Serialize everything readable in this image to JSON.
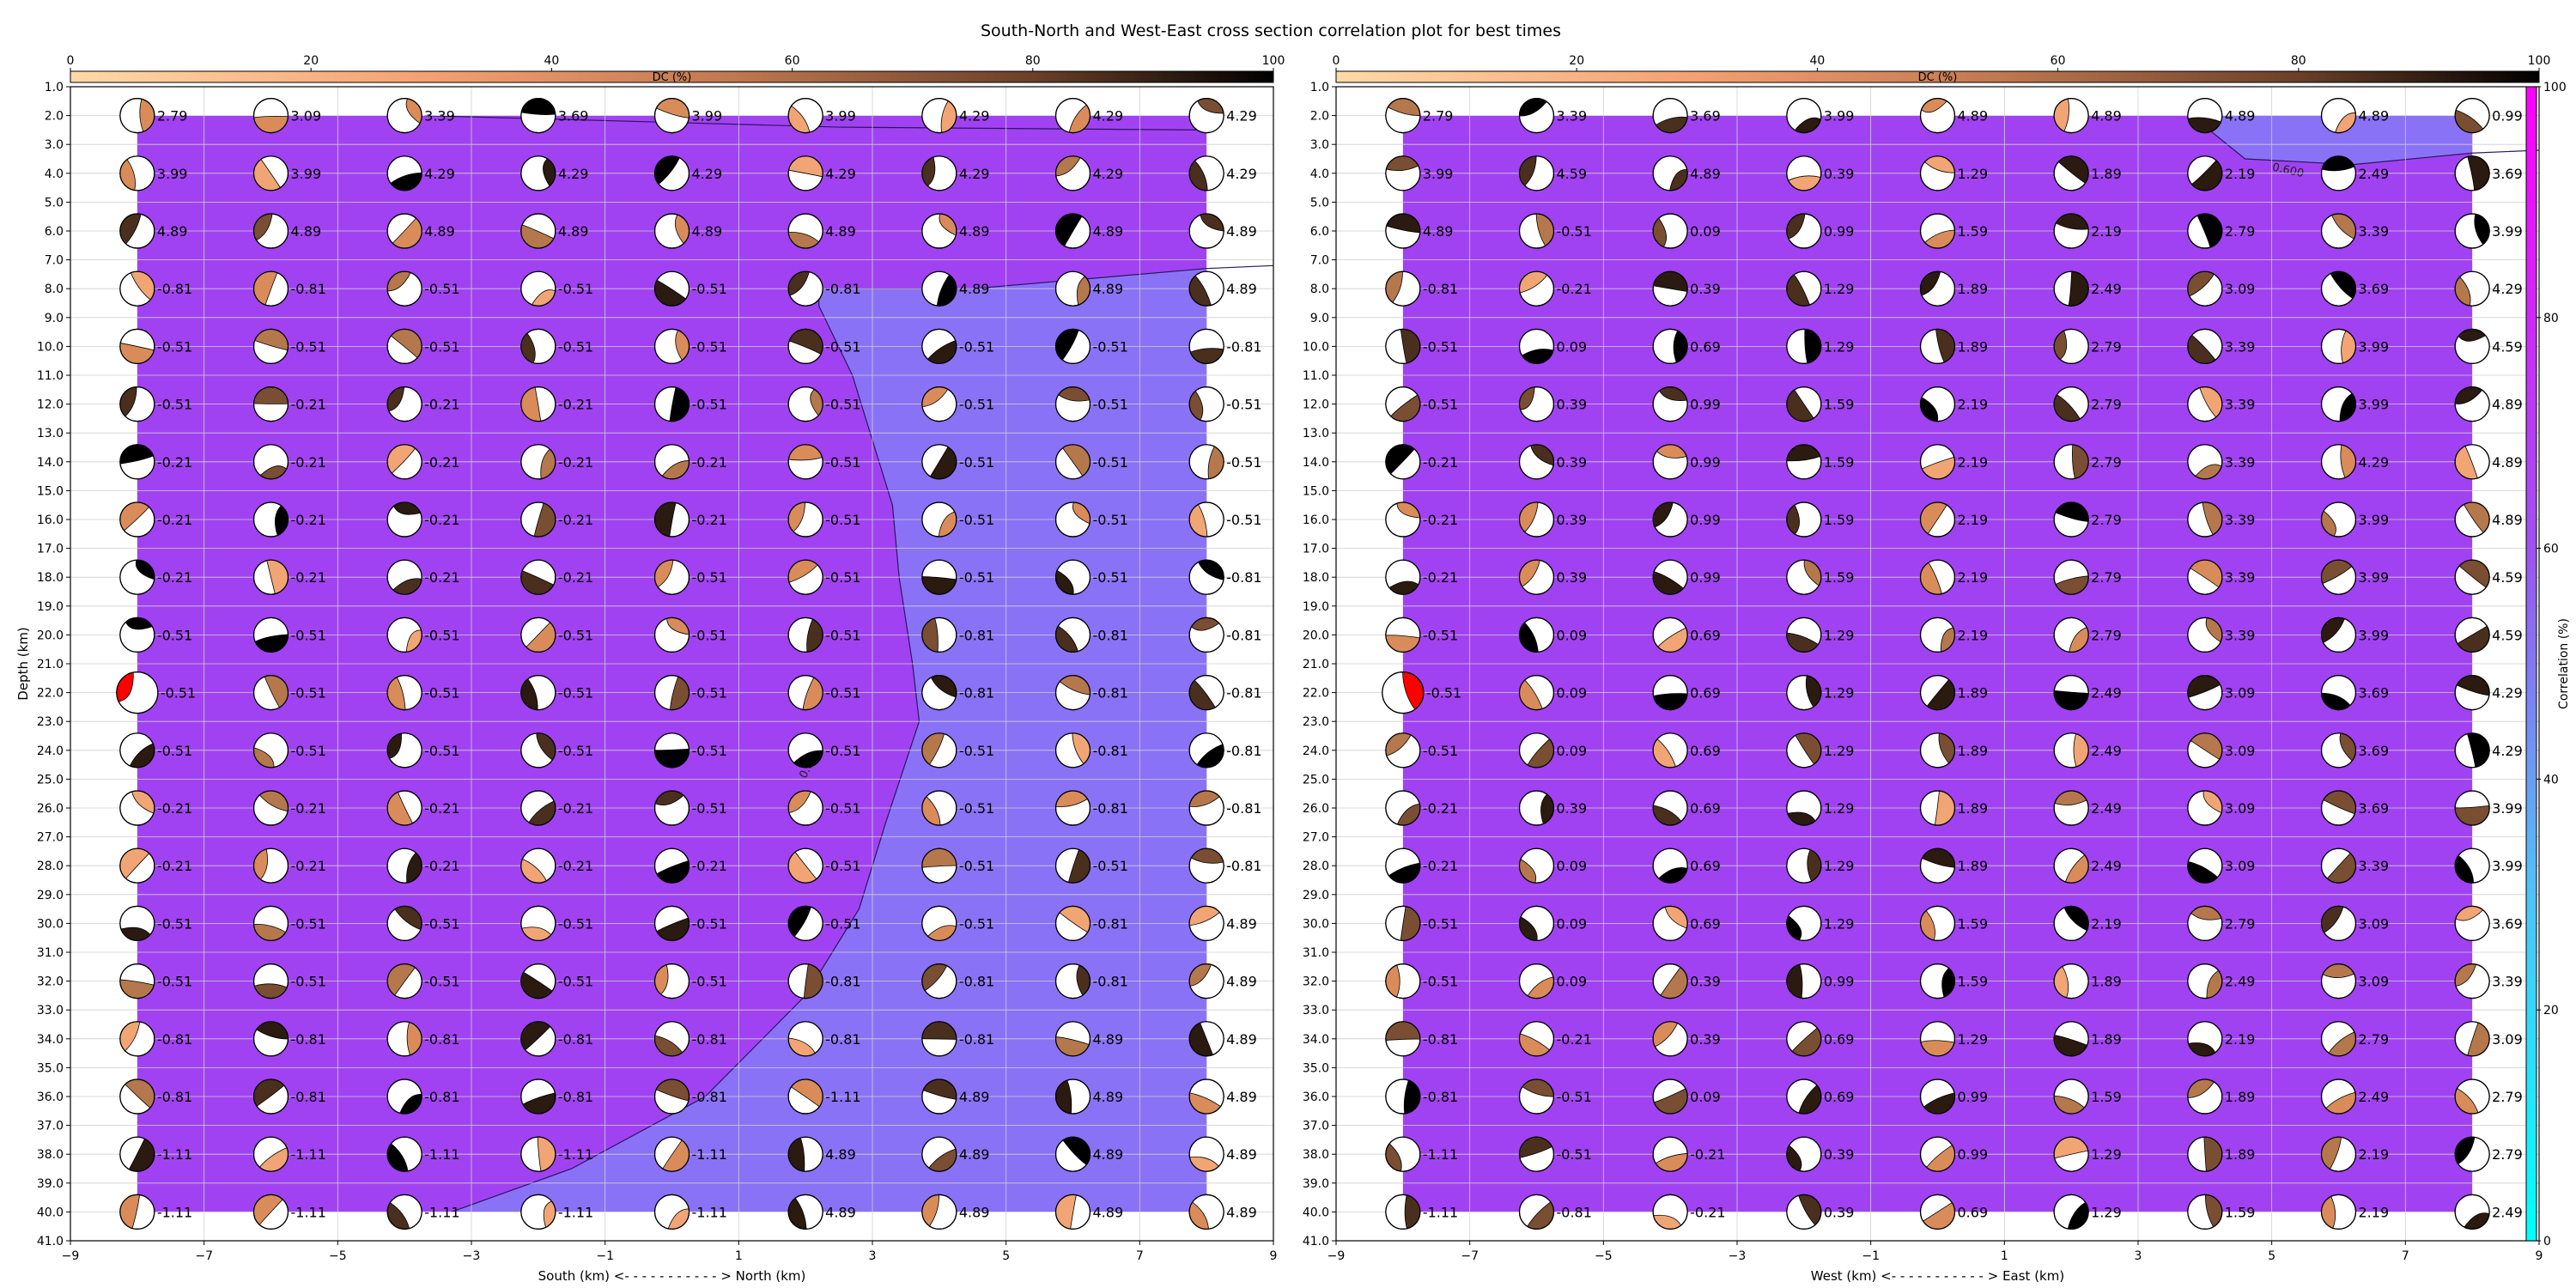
{
  "title": "South-North and West-East cross section correlation plot for best times",
  "chart_data": [
    {
      "type": "scatter",
      "panel": "south-north",
      "xlabel": "South (km) <- - - - - - - - - - - > North (km)",
      "ylabel": "Depth (km)",
      "xlim": [
        -9,
        9
      ],
      "ylim": [
        41,
        1
      ],
      "xticks": [
        "−9",
        "−7",
        "−5",
        "−3",
        "−1",
        "1",
        "3",
        "5",
        "7",
        "9"
      ],
      "x_positions": [
        -8,
        -6,
        -4,
        -2,
        0,
        2,
        4,
        6,
        8
      ],
      "depths": [
        2,
        4,
        6,
        8,
        10,
        12,
        14,
        16,
        18,
        20,
        22,
        24,
        26,
        28,
        30,
        32,
        34,
        36,
        38,
        40
      ],
      "times": [
        [
          "2.79",
          "3.09",
          "3.39",
          "3.69",
          "3.99",
          "3.99",
          "4.29",
          "4.29",
          "4.29"
        ],
        [
          "3.99",
          "3.99",
          "4.29",
          "4.29",
          "4.29",
          "4.29",
          "4.29",
          "4.29",
          "4.29"
        ],
        [
          "4.89",
          "4.89",
          "4.89",
          "4.89",
          "4.89",
          "4.89",
          "4.89",
          "4.89",
          "4.89"
        ],
        [
          "-0.81",
          "-0.81",
          "-0.51",
          "-0.51",
          "-0.51",
          "-0.81",
          "4.89",
          "4.89",
          "4.89"
        ],
        [
          "-0.51",
          "-0.51",
          "-0.51",
          "-0.51",
          "-0.51",
          "-0.51",
          "-0.51",
          "-0.51",
          "-0.81"
        ],
        [
          "-0.51",
          "-0.21",
          "-0.21",
          "-0.21",
          "-0.51",
          "-0.51",
          "-0.51",
          "-0.51",
          "-0.51"
        ],
        [
          "-0.21",
          "-0.21",
          "-0.21",
          "-0.21",
          "-0.21",
          "-0.51",
          "-0.51",
          "-0.51",
          "-0.51"
        ],
        [
          "-0.21",
          "-0.21",
          "-0.21",
          "-0.21",
          "-0.21",
          "-0.51",
          "-0.51",
          "-0.51",
          "-0.51"
        ],
        [
          "-0.21",
          "-0.21",
          "-0.21",
          "-0.21",
          "-0.51",
          "-0.51",
          "-0.51",
          "-0.51",
          "-0.81"
        ],
        [
          "-0.51",
          "-0.51",
          "-0.51",
          "-0.51",
          "-0.51",
          "-0.51",
          "-0.81",
          "-0.81",
          "-0.81"
        ],
        [
          "-0.51",
          "-0.51",
          "-0.51",
          "-0.51",
          "-0.51",
          "-0.51",
          "-0.81",
          "-0.81",
          "-0.81"
        ],
        [
          "-0.51",
          "-0.51",
          "-0.51",
          "-0.51",
          "-0.51",
          "-0.51",
          "-0.51",
          "-0.81",
          "-0.81"
        ],
        [
          "-0.21",
          "-0.21",
          "-0.21",
          "-0.21",
          "-0.51",
          "-0.51",
          "-0.51",
          "-0.81",
          "-0.81"
        ],
        [
          "-0.21",
          "-0.21",
          "-0.21",
          "-0.21",
          "-0.21",
          "-0.51",
          "-0.51",
          "-0.51",
          "-0.81"
        ],
        [
          "-0.51",
          "-0.51",
          "-0.51",
          "-0.51",
          "-0.51",
          "-0.51",
          "-0.51",
          "-0.81",
          "4.89"
        ],
        [
          "-0.51",
          "-0.51",
          "-0.51",
          "-0.51",
          "-0.51",
          "-0.81",
          "-0.81",
          "-0.81",
          "4.89"
        ],
        [
          "-0.81",
          "-0.81",
          "-0.81",
          "-0.81",
          "-0.81",
          "-0.81",
          "-0.81",
          "4.89",
          "4.89"
        ],
        [
          "-0.81",
          "-0.81",
          "-0.81",
          "-0.81",
          "-0.81",
          "-1.11",
          "4.89",
          "4.89",
          "4.89"
        ],
        [
          "-1.11",
          "-1.11",
          "-1.11",
          "-1.11",
          "-1.11",
          "4.89",
          "4.89",
          "4.89",
          "4.89"
        ],
        [
          "-1.11",
          "-1.11",
          "-1.11",
          "-1.11",
          "-1.11",
          "4.89",
          "4.89",
          "4.89",
          "4.89"
        ]
      ],
      "contour_label": "0.600",
      "contour_polyline": [
        [
          -3.3,
          40
        ],
        [
          -1.5,
          38.5
        ],
        [
          0.5,
          36
        ],
        [
          2.0,
          32.5
        ],
        [
          2.8,
          29.5
        ],
        [
          3.2,
          26.5
        ],
        [
          3.7,
          23
        ],
        [
          3.6,
          21
        ],
        [
          3.4,
          18
        ],
        [
          3.3,
          15.5
        ],
        [
          2.7,
          11
        ],
        [
          2.2,
          8.6
        ],
        [
          2.2,
          8
        ],
        [
          4.5,
          8
        ],
        [
          8.0,
          7.3
        ],
        [
          9,
          7.2
        ]
      ],
      "contour_top": [
        [
          -3.7,
          2
        ],
        [
          2.5,
          2.4
        ],
        [
          8,
          2.5
        ]
      ],
      "colorbar_label": "DC (%)",
      "colorbar_ticks": [
        "0",
        "20",
        "40",
        "60",
        "80",
        "100"
      ]
    },
    {
      "type": "scatter",
      "panel": "west-east",
      "xlabel": "West (km) <- - - - - - - - - - - > East (km)",
      "ylabel": "",
      "xlim": [
        -9,
        9
      ],
      "ylim": [
        41,
        1
      ],
      "xticks": [
        "−9",
        "−7",
        "−5",
        "−3",
        "−1",
        "1",
        "3",
        "5",
        "7",
        "9"
      ],
      "x_positions": [
        -8,
        -6,
        -4,
        -2,
        0,
        2,
        4,
        6,
        8
      ],
      "depths": [
        2,
        4,
        6,
        8,
        10,
        12,
        14,
        16,
        18,
        20,
        22,
        24,
        26,
        28,
        30,
        32,
        34,
        36,
        38,
        40
      ],
      "times": [
        [
          "2.79",
          "3.39",
          "3.69",
          "3.99",
          "4.89",
          "4.89",
          "4.89",
          "4.89",
          "0.99"
        ],
        [
          "3.99",
          "4.59",
          "4.89",
          "0.39",
          "1.29",
          "1.89",
          "2.19",
          "2.49",
          "3.69"
        ],
        [
          "4.89",
          "-0.51",
          "0.09",
          "0.99",
          "1.59",
          "2.19",
          "2.79",
          "3.39",
          "3.99"
        ],
        [
          "-0.81",
          "-0.21",
          "0.39",
          "1.29",
          "1.89",
          "2.49",
          "3.09",
          "3.69",
          "4.29"
        ],
        [
          "-0.51",
          "0.09",
          "0.69",
          "1.29",
          "1.89",
          "2.79",
          "3.39",
          "3.99",
          "4.59"
        ],
        [
          "-0.51",
          "0.39",
          "0.99",
          "1.59",
          "2.19",
          "2.79",
          "3.39",
          "3.99",
          "4.89"
        ],
        [
          "-0.21",
          "0.39",
          "0.99",
          "1.59",
          "2.19",
          "2.79",
          "3.39",
          "4.29",
          "4.89"
        ],
        [
          "-0.21",
          "0.39",
          "0.99",
          "1.59",
          "2.19",
          "2.79",
          "3.39",
          "3.99",
          "4.89"
        ],
        [
          "-0.21",
          "0.39",
          "0.99",
          "1.59",
          "2.19",
          "2.79",
          "3.39",
          "3.99",
          "4.59"
        ],
        [
          "-0.51",
          "0.09",
          "0.69",
          "1.29",
          "2.19",
          "2.79",
          "3.39",
          "3.99",
          "4.59"
        ],
        [
          "-0.51",
          "0.09",
          "0.69",
          "1.29",
          "1.89",
          "2.49",
          "3.09",
          "3.69",
          "4.29"
        ],
        [
          "-0.51",
          "0.09",
          "0.69",
          "1.29",
          "1.89",
          "2.49",
          "3.09",
          "3.69",
          "4.29"
        ],
        [
          "-0.21",
          "0.39",
          "0.69",
          "1.29",
          "1.89",
          "2.49",
          "3.09",
          "3.69",
          "3.99"
        ],
        [
          "-0.21",
          "0.09",
          "0.69",
          "1.29",
          "1.89",
          "2.49",
          "3.09",
          "3.39",
          "3.99"
        ],
        [
          "-0.51",
          "0.09",
          "0.69",
          "1.29",
          "1.59",
          "2.19",
          "2.79",
          "3.09",
          "3.69"
        ],
        [
          "-0.51",
          "0.09",
          "0.39",
          "0.99",
          "1.59",
          "1.89",
          "2.49",
          "3.09",
          "3.39"
        ],
        [
          "-0.81",
          "-0.21",
          "0.39",
          "0.69",
          "1.29",
          "1.89",
          "2.19",
          "2.79",
          "3.09"
        ],
        [
          "-0.81",
          "-0.51",
          "0.09",
          "0.69",
          "0.99",
          "1.59",
          "1.89",
          "2.49",
          "2.79"
        ],
        [
          "-1.11",
          "-0.51",
          "-0.21",
          "0.39",
          "0.99",
          "1.29",
          "1.89",
          "2.19",
          "2.79"
        ],
        [
          "-1.11",
          "-0.81",
          "-0.21",
          "0.39",
          "0.69",
          "1.29",
          "1.59",
          "2.19",
          "2.49"
        ]
      ],
      "contour_label": "0.600",
      "contour_top": [
        [
          3.8,
          2
        ],
        [
          4.6,
          3.5
        ],
        [
          6.2,
          3.7
        ],
        [
          8,
          3.3
        ],
        [
          9,
          3.2
        ]
      ],
      "colorbar_label": "DC (%)",
      "colorbar_ticks": [
        "0",
        "20",
        "40",
        "60",
        "80",
        "100"
      ]
    }
  ],
  "correlation_colorbar": {
    "label": "Correlation (%)",
    "ticks": [
      "0",
      "20",
      "40",
      "60",
      "80",
      "100"
    ],
    "colors": [
      "#00ffff",
      "#ff00ff"
    ]
  },
  "colors": {
    "low_correlation": "#a142f2",
    "high_correlation": "#8a72f7",
    "highlight": "#ff0000"
  }
}
